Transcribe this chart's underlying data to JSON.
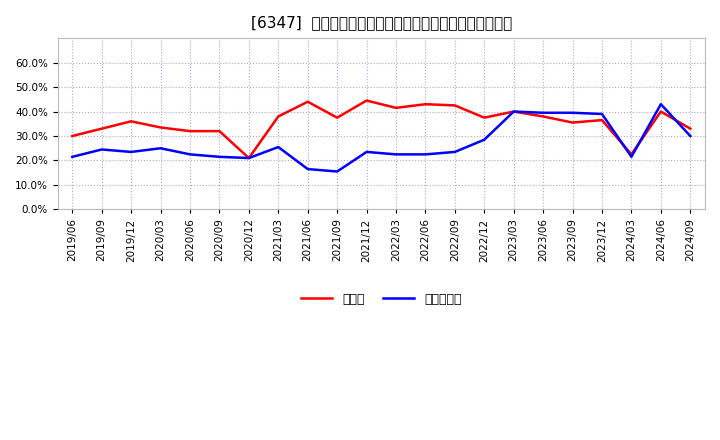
{
  "title": "[6347]  現預金、有利子負債の総資産に対する比率の推移",
  "x_labels": [
    "2019/06",
    "2019/09",
    "2019/12",
    "2020/03",
    "2020/06",
    "2020/09",
    "2020/12",
    "2021/03",
    "2021/06",
    "2021/09",
    "2021/12",
    "2022/03",
    "2022/06",
    "2022/09",
    "2022/12",
    "2023/03",
    "2023/06",
    "2023/09",
    "2023/12",
    "2024/03",
    "2024/06",
    "2024/09"
  ],
  "genkin": [
    0.3,
    0.33,
    0.36,
    0.335,
    0.32,
    0.32,
    0.21,
    0.38,
    0.44,
    0.375,
    0.445,
    0.415,
    0.43,
    0.425,
    0.375,
    0.4,
    0.38,
    0.355,
    0.365,
    0.225,
    0.4,
    0.33
  ],
  "yushi": [
    0.215,
    0.245,
    0.235,
    0.25,
    0.225,
    0.215,
    0.21,
    0.255,
    0.165,
    0.155,
    0.235,
    0.225,
    0.225,
    0.235,
    0.285,
    0.4,
    0.395,
    0.395,
    0.39,
    0.215,
    0.43,
    0.3
  ],
  "genkin_color": "#ff0000",
  "yushi_color": "#0000ff",
  "background_color": "#ffffff",
  "plot_bg_color": "#ffffff",
  "grid_color": "#aaaacc",
  "ylim": [
    0.0,
    0.7
  ],
  "yticks": [
    0.0,
    0.1,
    0.2,
    0.3,
    0.4,
    0.5,
    0.6
  ],
  "legend_genkin": "現預金",
  "legend_yushi": "有利子負債",
  "title_fontsize": 11,
  "axis_fontsize": 7.5,
  "legend_fontsize": 9,
  "line_width": 1.8
}
